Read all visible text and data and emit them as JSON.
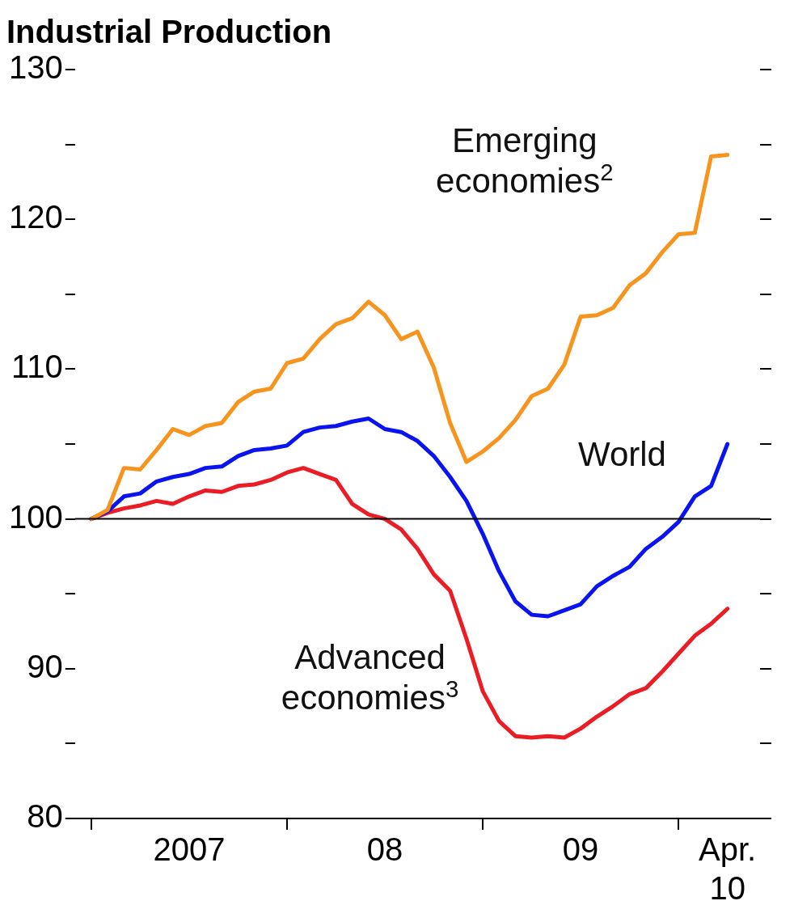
{
  "chart_data": {
    "type": "line",
    "title": "Industrial Production",
    "x": [
      "2007-01",
      "2007-02",
      "2007-03",
      "2007-04",
      "2007-05",
      "2007-06",
      "2007-07",
      "2007-08",
      "2007-09",
      "2007-10",
      "2007-11",
      "2007-12",
      "2008-01",
      "2008-02",
      "2008-03",
      "2008-04",
      "2008-05",
      "2008-06",
      "2008-07",
      "2008-08",
      "2008-09",
      "2008-10",
      "2008-11",
      "2008-12",
      "2009-01",
      "2009-02",
      "2009-03",
      "2009-04",
      "2009-05",
      "2009-06",
      "2009-07",
      "2009-08",
      "2009-09",
      "2009-10",
      "2009-11",
      "2009-12",
      "2010-01",
      "2010-02",
      "2010-03",
      "2010-04"
    ],
    "series": [
      {
        "name": "Emerging economies$^{2}$",
        "color": "#f7941d",
        "values": [
          100,
          100.6,
          103.4,
          103.3,
          104.6,
          106,
          105.6,
          106.2,
          106.4,
          107.8,
          108.5,
          108.7,
          110.4,
          110.7,
          112,
          113,
          113.4,
          114.5,
          113.6,
          112,
          112.5,
          110.1,
          106.4,
          103.8,
          104.5,
          105.4,
          106.6,
          108.2,
          108.7,
          110.3,
          113.5,
          113.6,
          114.1,
          115.6,
          116.4,
          117.8,
          119,
          119.1,
          124.2,
          124.3
        ]
      },
      {
        "name": "World",
        "color": "#0a14f0",
        "values": [
          100,
          100.5,
          101.5,
          101.7,
          102.5,
          102.8,
          103,
          103.4,
          103.5,
          104.2,
          104.6,
          104.7,
          104.9,
          105.8,
          106.1,
          106.2,
          106.5,
          106.7,
          106,
          105.8,
          105.2,
          104.2,
          102.8,
          101.2,
          99,
          96.5,
          94.5,
          93.6,
          93.5,
          93.9,
          94.3,
          95.5,
          96.2,
          96.8,
          98,
          98.8,
          99.8,
          101.5,
          102.2,
          105
        ]
      },
      {
        "name": "Advanced economies$^{3}$",
        "color": "#ec1c24",
        "values": [
          100,
          100.4,
          100.7,
          100.9,
          101.2,
          101,
          101.5,
          101.9,
          101.8,
          102.2,
          102.3,
          102.6,
          103.1,
          103.4,
          103,
          102.6,
          101,
          100.3,
          100,
          99.3,
          98,
          96.3,
          95.2,
          92,
          88.5,
          86.5,
          85.5,
          85.4,
          85.5,
          85.4,
          86,
          86.8,
          87.5,
          88.3,
          88.7,
          89.8,
          91,
          92.2,
          93,
          94
        ]
      }
    ],
    "xlim": [
      "2006-12",
      "2010-06"
    ],
    "xticks": [
      {
        "value": "2007-01",
        "label": null
      },
      {
        "value": "2007-07",
        "label": "2007"
      },
      {
        "value": "2008-01",
        "label": null
      },
      {
        "value": "2008-07",
        "label": "08"
      },
      {
        "value": "2009-01",
        "label": null
      },
      {
        "value": "2009-07",
        "label": "09"
      },
      {
        "value": "2010-01",
        "label": null
      },
      {
        "value": "2010-04",
        "label": "Apr. 10"
      }
    ],
    "ylim": [
      80,
      130
    ],
    "yticks": [
      80,
      {
        "value": 85,
        "label": null
      },
      90,
      {
        "value": 95,
        "label": null
      },
      100,
      {
        "value": 105,
        "label": null
      },
      110,
      {
        "value": 115,
        "label": null
      },
      120,
      {
        "value": 125,
        "label": null
      },
      130
    ],
    "ref_lines": [
      {
        "axis": "y",
        "value": 100,
        "color": "#000000"
      }
    ],
    "grid": false,
    "legend": false,
    "marker": "none",
    "line_style": "solid"
  }
}
